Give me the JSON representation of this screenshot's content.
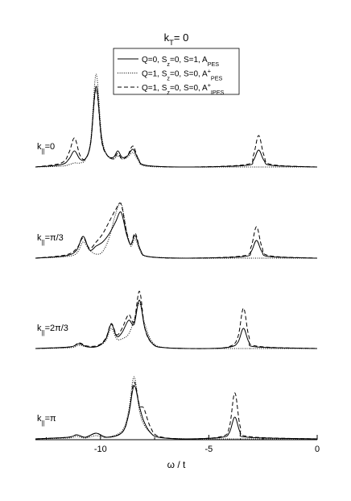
{
  "chart_data": {
    "type": "line",
    "title": "k_{T}= 0",
    "xlabel": "ω / t",
    "xlim": [
      -13,
      0
    ],
    "xticks": [
      -10,
      -5,
      0
    ],
    "xminorticks": [
      -12.5,
      -7.5,
      -2.5
    ],
    "ylim": [
      0,
      1.13
    ],
    "panels": [
      {
        "label": "k_{||}=0",
        "x": [
          -13,
          -11.8,
          -11.45,
          -11.2,
          -10.95,
          -10.7,
          -10.45,
          -10.2,
          -9.95,
          -9.7,
          -9.4,
          -9.2,
          -9.0,
          -8.75,
          -8.5,
          -8.25,
          -7.9,
          -6,
          -3.3,
          -2.95,
          -2.7,
          -2.45,
          -2.1,
          0
        ],
        "series": [
          {
            "name": "Q=0, S_{z}=0, S=1,  A_{PES}",
            "style": "solid",
            "color": "#000000",
            "values": [
              0,
              0.03,
              0.1,
              0.2,
              0.1,
              0.1,
              0.3,
              1.0,
              0.35,
              0.15,
              0.12,
              0.2,
              0.12,
              0.14,
              0.22,
              0.1,
              0.02,
              0,
              0.02,
              0.08,
              0.21,
              0.08,
              0.02,
              0
            ]
          },
          {
            "name": "Q=1, S_{z}=0, S=0,  A^{+}_{PES}",
            "style": "dotted",
            "color": "#000000",
            "values": [
              0,
              0.01,
              0.03,
              0.05,
              0.05,
              0.09,
              0.33,
              1.15,
              0.4,
              0.15,
              0.1,
              0.14,
              0.1,
              0.12,
              0.18,
              0.08,
              0.01,
              0,
              0,
              0,
              0,
              0,
              0,
              0
            ]
          },
          {
            "name": "Q=1, S_{z}=0, S=0,  A^{+}_{IPES}",
            "style": "dashed",
            "color": "#000000",
            "values": [
              0,
              0.05,
              0.18,
              0.36,
              0.15,
              0.1,
              0.3,
              0.97,
              0.33,
              0.15,
              0.1,
              0.17,
              0.1,
              0.14,
              0.26,
              0.1,
              0.02,
              0,
              0.03,
              0.14,
              0.39,
              0.14,
              0.03,
              0
            ]
          }
        ]
      },
      {
        "label": "k_{||}=π/3",
        "x": [
          -13,
          -11.6,
          -11.1,
          -10.8,
          -10.5,
          -10.2,
          -9.9,
          -9.6,
          -9.3,
          -9.05,
          -8.8,
          -8.6,
          -8.4,
          -8.15,
          -7.8,
          -6,
          -3.4,
          -3.05,
          -2.8,
          -2.55,
          -2.2,
          0
        ],
        "series": [
          {
            "style": "solid",
            "color": "#000000",
            "values": [
              0,
              0.03,
              0.1,
              0.27,
              0.1,
              0.15,
              0.2,
              0.3,
              0.45,
              0.57,
              0.3,
              0.17,
              0.28,
              0.1,
              0.02,
              0,
              0.02,
              0.08,
              0.22,
              0.08,
              0.02,
              0
            ]
          },
          {
            "style": "dotted",
            "color": "#000000",
            "values": [
              0,
              0.02,
              0.06,
              0.2,
              0.1,
              0.05,
              0.08,
              0.25,
              0.55,
              0.68,
              0.35,
              0.15,
              0.24,
              0.08,
              0.02,
              0,
              0,
              0,
              0,
              0,
              0,
              0
            ]
          },
          {
            "style": "dashed",
            "color": "#000000",
            "values": [
              0,
              0.04,
              0.12,
              0.25,
              0.12,
              0.2,
              0.3,
              0.45,
              0.6,
              0.67,
              0.33,
              0.17,
              0.31,
              0.1,
              0.02,
              0,
              0.03,
              0.14,
              0.39,
              0.14,
              0.03,
              0
            ]
          }
        ]
      },
      {
        "label": "k_{||}=2π/3",
        "x": [
          -13,
          -11.4,
          -11.0,
          -10.6,
          -10.1,
          -9.75,
          -9.5,
          -9.25,
          -9.0,
          -8.7,
          -8.45,
          -8.2,
          -7.95,
          -7.6,
          -7.0,
          -5,
          -4.0,
          -3.65,
          -3.4,
          -3.15,
          -2.8,
          0
        ],
        "series": [
          {
            "style": "solid",
            "color": "#000000",
            "values": [
              0,
              0.02,
              0.06,
              0.02,
              0.03,
              0.12,
              0.3,
              0.15,
              0.2,
              0.35,
              0.3,
              0.6,
              0.25,
              0.06,
              0.01,
              0,
              0.02,
              0.08,
              0.25,
              0.08,
              0.02,
              0
            ]
          },
          {
            "style": "dotted",
            "color": "#000000",
            "values": [
              0,
              0.01,
              0.04,
              0.02,
              0.03,
              0.1,
              0.25,
              0.12,
              0.12,
              0.18,
              0.35,
              0.56,
              0.3,
              0.08,
              0.01,
              0,
              0,
              0,
              0,
              0,
              0,
              0
            ]
          },
          {
            "style": "dashed",
            "color": "#000000",
            "values": [
              0,
              0.02,
              0.07,
              0.03,
              0.04,
              0.13,
              0.31,
              0.17,
              0.25,
              0.42,
              0.33,
              0.71,
              0.25,
              0.06,
              0.01,
              0,
              0.03,
              0.15,
              0.5,
              0.15,
              0.03,
              0
            ]
          }
        ]
      },
      {
        "label": "k_{||}=π",
        "x": [
          -13,
          -11.5,
          -11.1,
          -10.7,
          -10.2,
          -9.7,
          -9.0,
          -8.7,
          -8.45,
          -8.2,
          -8.0,
          -7.7,
          -7.3,
          -6,
          -4.4,
          -4.05,
          -3.8,
          -3.55,
          -3.2,
          0
        ],
        "series": [
          {
            "style": "solid",
            "color": "#000000",
            "values": [
              0,
              0.02,
              0.05,
              0.02,
              0.07,
              0.02,
              0.08,
              0.3,
              0.66,
              0.4,
              0.22,
              0.08,
              0.02,
              0,
              0.02,
              0.08,
              0.27,
              0.08,
              0.02,
              0
            ]
          },
          {
            "style": "dotted",
            "color": "#000000",
            "values": [
              0,
              0.01,
              0.03,
              0.01,
              0.04,
              0.02,
              0.1,
              0.35,
              0.77,
              0.35,
              0.18,
              0.08,
              0.02,
              0,
              0,
              0,
              0,
              0,
              0,
              0
            ]
          },
          {
            "style": "dashed",
            "color": "#000000",
            "values": [
              0,
              0.02,
              0.05,
              0.02,
              0.07,
              0.02,
              0.08,
              0.3,
              0.7,
              0.42,
              0.38,
              0.15,
              0.03,
              0,
              0.03,
              0.15,
              0.57,
              0.15,
              0.03,
              0
            ]
          }
        ]
      }
    ]
  }
}
